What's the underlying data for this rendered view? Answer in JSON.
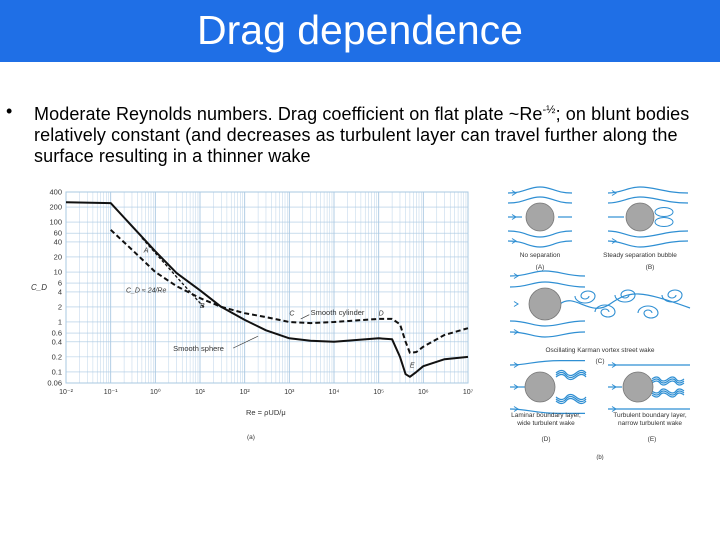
{
  "slide": {
    "title": "Drag dependence",
    "bullet_symbol": "•",
    "body_pre": "Moderate Reynolds numbers. Drag coefficient on flat plate ~Re",
    "body_sup": "-½",
    "body_post": "; on blunt bodies relatively constant (and decreases as turbulent layer can travel further along the surface resulting in a thinner wake"
  },
  "colors": {
    "title_bar": "#1f6fe6",
    "grid": "#a9c8e2",
    "flow": "#2f8fd3",
    "cylinder": "#a6a6a6"
  },
  "chart_data": {
    "type": "line",
    "xscale": "log",
    "yscale": "log",
    "xlim": [
      0.01,
      10000000
    ],
    "ylim": [
      0.06,
      400
    ],
    "xlabel": "Re = ρUD/μ",
    "ylabel": "C_D",
    "x_ticks": [
      "10⁻²",
      "10⁻¹",
      "10⁰",
      "10¹",
      "10²",
      "10³",
      "10⁴",
      "10⁵",
      "10⁶",
      "10⁷"
    ],
    "y_ticks": [
      400,
      200,
      100,
      60,
      40,
      20,
      10,
      6,
      4,
      2,
      1,
      0.6,
      0.4,
      0.2,
      0.1,
      0.06
    ],
    "y_tick_labels": [
      "400",
      "200",
      "100",
      "60",
      "40",
      "20",
      "10",
      "6",
      "4",
      "2",
      "1",
      "0.6",
      "0.4",
      "0.2",
      "0.1",
      "0.06"
    ],
    "series": [
      {
        "name": "Smooth cylinder",
        "style": "dashed",
        "x": [
          0.1,
          0.3,
          1,
          3,
          10,
          30,
          100,
          300,
          1000,
          3000,
          10000,
          100000,
          200000,
          300000,
          400000,
          500000,
          700000,
          1000000,
          3000000,
          10000000
        ],
        "y": [
          70,
          28,
          10,
          5.2,
          3.0,
          2.0,
          1.5,
          1.25,
          1.0,
          0.95,
          1.0,
          1.15,
          1.15,
          0.9,
          0.4,
          0.24,
          0.25,
          0.32,
          0.55,
          0.75
        ]
      },
      {
        "name": "Smooth sphere",
        "style": "solid",
        "x": [
          0.01,
          0.1,
          1,
          3,
          10,
          30,
          100,
          300,
          1000,
          3000,
          10000,
          100000,
          200000,
          300000,
          400000,
          500000,
          700000,
          1000000,
          3000000,
          10000000
        ],
        "y": [
          250,
          240,
          26,
          9.5,
          4.3,
          2.0,
          1.1,
          0.68,
          0.47,
          0.42,
          0.4,
          0.47,
          0.45,
          0.2,
          0.09,
          0.08,
          0.1,
          0.13,
          0.18,
          0.2
        ]
      },
      {
        "name": "C_D = 24/Re",
        "style": "dashed",
        "x": [
          0.5,
          1,
          3,
          12
        ],
        "y": [
          48,
          24,
          8,
          2
        ]
      }
    ],
    "annotations": {
      "formula": "C_D ≈ 24/Re",
      "smooth_cylinder": "Smooth cylinder",
      "smooth_sphere": "Smooth sphere",
      "points": [
        "A",
        "B",
        "C",
        "D",
        "E"
      ],
      "panel_label": "(a)"
    }
  },
  "flow_panels": {
    "a_caption": "No separation",
    "a_label": "(A)",
    "b_caption": "Steady separation bubble",
    "b_label": "(B)",
    "c_caption": "Oscillating Karman vortex street wake",
    "c_label": "(C)",
    "d_caption_1": "Laminar boundary layer,",
    "d_caption_2": "wide turbulent wake",
    "d_label": "(D)",
    "e_caption_1": "Turbulent boundary layer,",
    "e_caption_2": "narrow turbulent wake",
    "e_label": "(E)",
    "panel_label": "(b)"
  }
}
